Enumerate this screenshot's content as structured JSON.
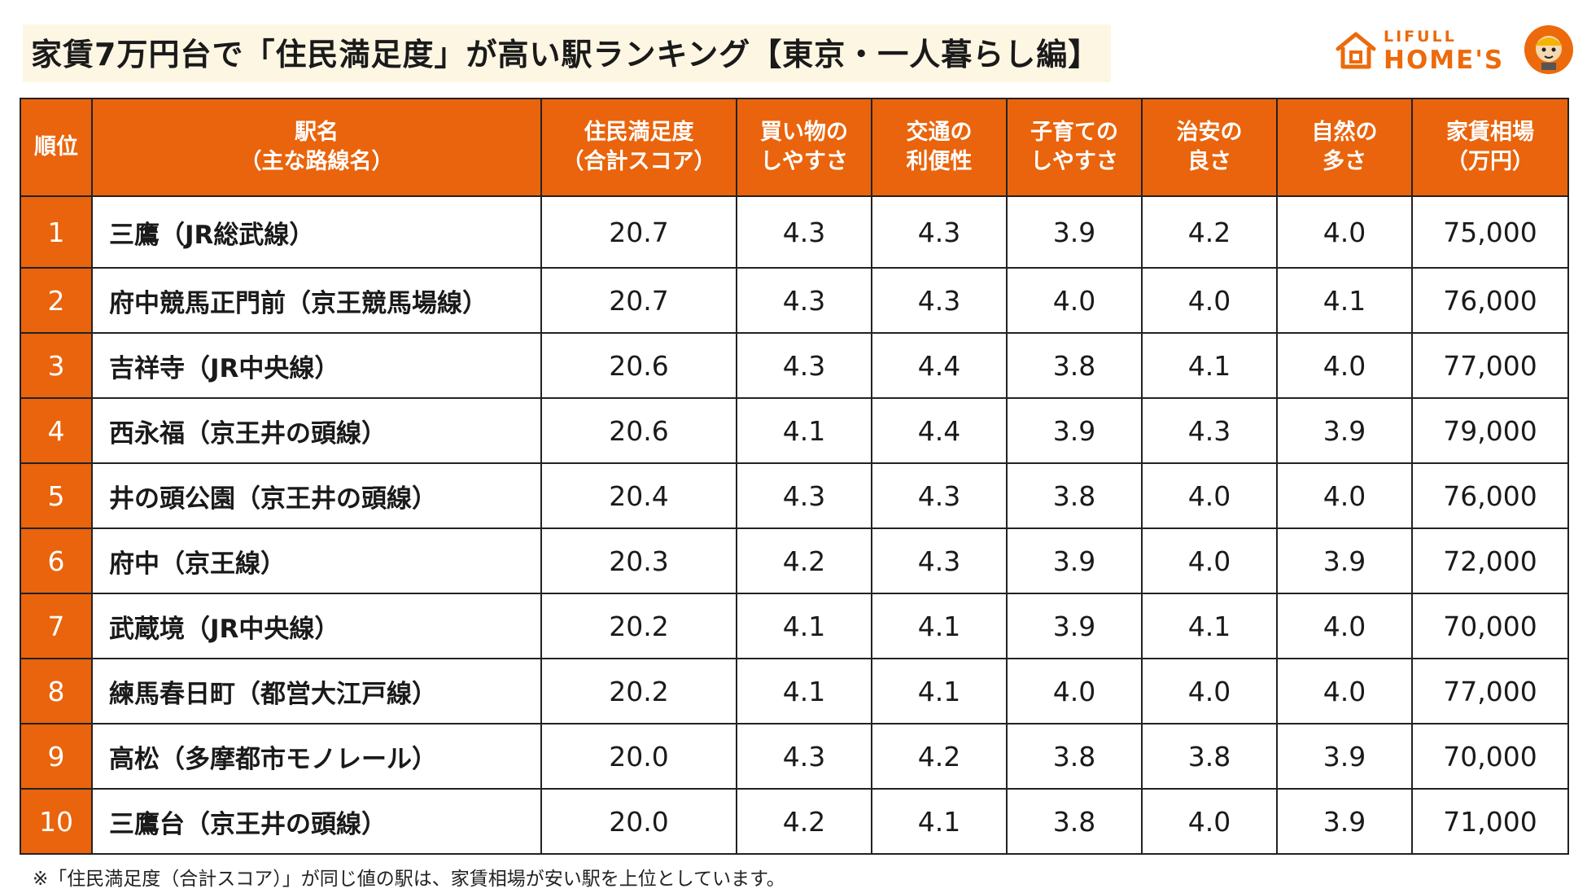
{
  "title": "家賃7万円台で「住民満足度」が高い駅ランキング【東京・一人暮らし編】",
  "logo": {
    "brand_small": "LIFULL",
    "brand_big": "HOME'S",
    "color": "#ec6a0b"
  },
  "table": {
    "headers": [
      "順位",
      "駅名\n（主な路線名）",
      "住民満足度\n（合計スコア）",
      "買い物の\nしやすさ",
      "交通の\n利便性",
      "子育ての\nしやすさ",
      "治安の\n良さ",
      "自然の\n多さ",
      "家賃相場\n（万円）"
    ],
    "rows": [
      {
        "rank": "1",
        "station": "三鷹（JR総武線）",
        "total": "20.7",
        "shopping": "4.3",
        "transport": "4.3",
        "childcare": "3.9",
        "safety": "4.2",
        "nature": "4.0",
        "rent": "75,000"
      },
      {
        "rank": "2",
        "station": "府中競馬正門前（京王競馬場線）",
        "total": "20.7",
        "shopping": "4.3",
        "transport": "4.3",
        "childcare": "4.0",
        "safety": "4.0",
        "nature": "4.1",
        "rent": "76,000"
      },
      {
        "rank": "3",
        "station": "吉祥寺（JR中央線）",
        "total": "20.6",
        "shopping": "4.3",
        "transport": "4.4",
        "childcare": "3.8",
        "safety": "4.1",
        "nature": "4.0",
        "rent": "77,000"
      },
      {
        "rank": "4",
        "station": "西永福（京王井の頭線）",
        "total": "20.6",
        "shopping": "4.1",
        "transport": "4.4",
        "childcare": "3.9",
        "safety": "4.3",
        "nature": "3.9",
        "rent": "79,000"
      },
      {
        "rank": "5",
        "station": "井の頭公園（京王井の頭線）",
        "total": "20.4",
        "shopping": "4.3",
        "transport": "4.3",
        "childcare": "3.8",
        "safety": "4.0",
        "nature": "4.0",
        "rent": "76,000"
      },
      {
        "rank": "6",
        "station": "府中（京王線）",
        "total": "20.3",
        "shopping": "4.2",
        "transport": "4.3",
        "childcare": "3.9",
        "safety": "4.0",
        "nature": "3.9",
        "rent": "72,000"
      },
      {
        "rank": "7",
        "station": "武蔵境（JR中央線）",
        "total": "20.2",
        "shopping": "4.1",
        "transport": "4.1",
        "childcare": "3.9",
        "safety": "4.1",
        "nature": "4.0",
        "rent": "70,000"
      },
      {
        "rank": "8",
        "station": "練馬春日町（都営大江戸線）",
        "total": "20.2",
        "shopping": "4.1",
        "transport": "4.1",
        "childcare": "4.0",
        "safety": "4.0",
        "nature": "4.0",
        "rent": "77,000"
      },
      {
        "rank": "9",
        "station": "高松（多摩都市モノレール）",
        "total": "20.0",
        "shopping": "4.3",
        "transport": "4.2",
        "childcare": "3.8",
        "safety": "3.8",
        "nature": "3.9",
        "rent": "70,000"
      },
      {
        "rank": "10",
        "station": "三鷹台（京王井の頭線）",
        "total": "20.0",
        "shopping": "4.2",
        "transport": "4.1",
        "childcare": "3.8",
        "safety": "4.0",
        "nature": "3.9",
        "rent": "71,000"
      }
    ],
    "header_color": "#e9640c"
  },
  "footnote": "※「住民満足度（合計スコア）」が同じ値の駅は、家賃相場が安い駅を上位としています。"
}
